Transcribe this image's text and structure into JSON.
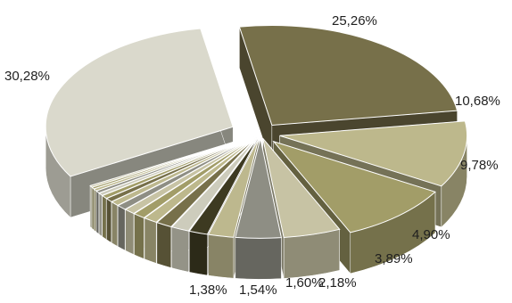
{
  "chart_data": {
    "type": "pie",
    "title": "",
    "values": [
      25.26,
      10.68,
      9.78,
      4.9,
      3.89,
      2.18,
      1.6,
      1.54,
      1.38,
      1.2,
      1.05,
      0.95,
      0.85,
      0.75,
      0.65,
      0.55,
      0.45,
      0.4,
      0.35,
      0.3,
      0.28,
      30.28
    ],
    "labels": [
      "25,26%",
      "10,68%",
      "9,78%",
      "4,90%",
      "3,89%",
      "2,18%",
      "1,60%",
      "1,54%",
      "1,38%",
      "",
      "",
      "",
      "",
      "",
      "",
      "",
      "",
      "",
      "",
      "",
      "",
      "30,28%"
    ],
    "colors": [
      "#77704a",
      "#bdb88c",
      "#a29d68",
      "#c7c3a4",
      "#8e8e84",
      "#bdb88e",
      "#3d3a21",
      "#cdccbc",
      "#77704a",
      "#bdb88c",
      "#a29d68",
      "#c7c3a4",
      "#8e8e84",
      "#bdb88e",
      "#77704a",
      "#a29d68",
      "#cdccbc",
      "#8e8e84",
      "#bdb88c",
      "#a29d68",
      "#c7c3a4",
      "#dad9cc"
    ],
    "exploded": true,
    "style": "3d",
    "legend": "none"
  }
}
